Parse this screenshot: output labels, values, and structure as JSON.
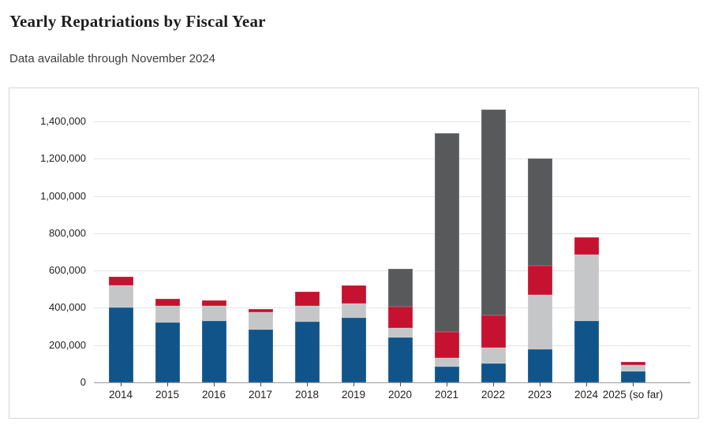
{
  "header": {
    "title": "Yearly Repatriations by Fiscal Year",
    "subtitle": "Data available through November 2024"
  },
  "chart_data": {
    "type": "stacked-bar",
    "title": "Yearly Repatriations by Fiscal Year",
    "subtitle": "Data available through November 2024",
    "categories": [
      "2014",
      "2015",
      "2016",
      "2017",
      "2018",
      "2019",
      "2020",
      "2021",
      "2022",
      "2023",
      "2024",
      "2025 (so far)"
    ],
    "series": [
      {
        "name": "blue-segment",
        "color": "#10548a",
        "values": [
          400000,
          320000,
          330000,
          285000,
          325000,
          347000,
          240000,
          85000,
          100000,
          178000,
          330000,
          60000
        ]
      },
      {
        "name": "light-gray-segment",
        "color": "#c4c6c8",
        "values": [
          120000,
          90000,
          80000,
          93000,
          85000,
          78000,
          50000,
          45000,
          85000,
          290000,
          355000,
          35000
        ]
      },
      {
        "name": "red-segment",
        "color": "#c41230",
        "values": [
          45000,
          40000,
          30000,
          15000,
          75000,
          95000,
          115000,
          140000,
          175000,
          160000,
          95000,
          15000
        ]
      },
      {
        "name": "dark-gray-segment",
        "color": "#58595b",
        "values": [
          0,
          0,
          0,
          0,
          0,
          0,
          205000,
          1065000,
          1105000,
          572000,
          0,
          0
        ]
      }
    ],
    "totals": [
      565000,
      450000,
      440000,
      393000,
      485000,
      520000,
      610000,
      1335000,
      1465000,
      1200000,
      780000,
      110000
    ],
    "y_ticks": [
      0,
      200000,
      400000,
      600000,
      800000,
      1000000,
      1200000,
      1400000
    ],
    "ylim": [
      0,
      1480000
    ],
    "xlabel": "",
    "ylabel": "",
    "grid": true,
    "legend": "none",
    "colors": {
      "gridline": "#e4e4e4",
      "axis_baseline": "#9a9a9a",
      "text": "#1f1f1f"
    }
  }
}
